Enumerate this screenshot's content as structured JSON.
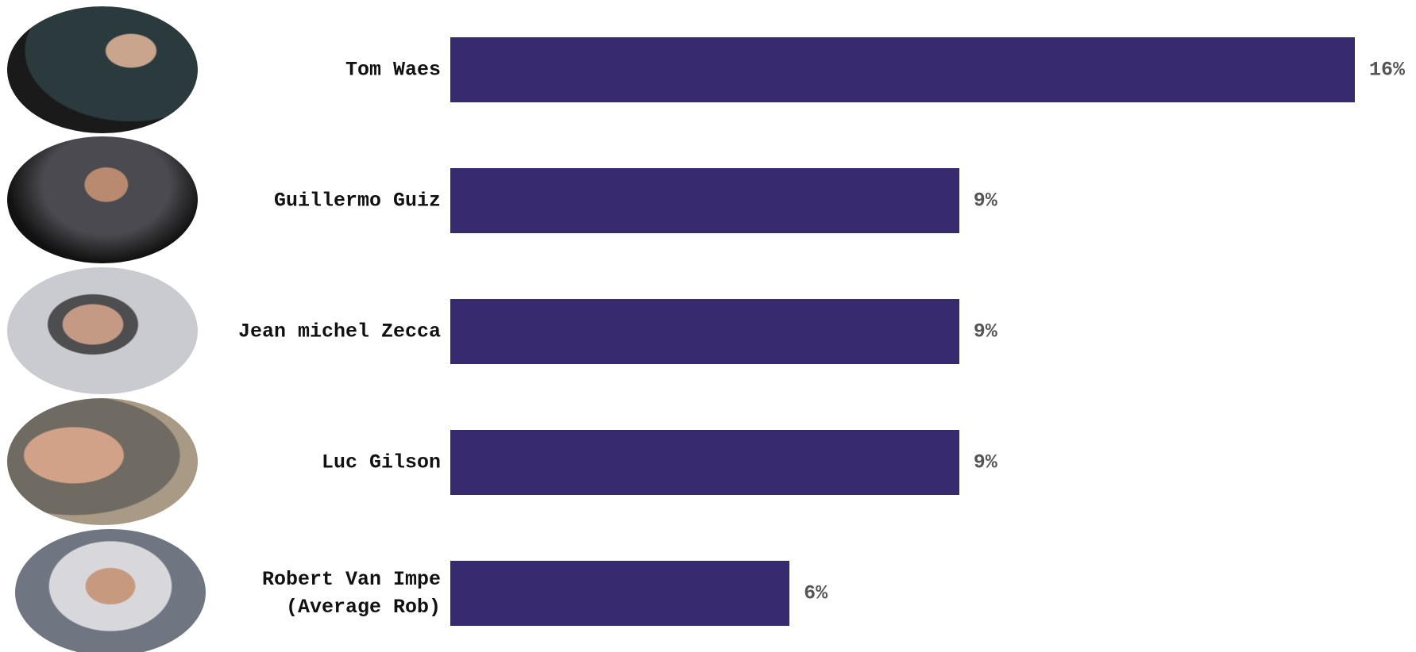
{
  "chart_data": {
    "type": "bar",
    "orientation": "horizontal",
    "categories": [
      "Tom Waes",
      "Guillermo Guiz",
      "Jean michel Zecca",
      "Luc Gilson",
      "Robert Van Impe\n(Average Rob)"
    ],
    "values": [
      16,
      9,
      9,
      9,
      6
    ],
    "value_labels": [
      "16%",
      "9%",
      "9%",
      "9%",
      "6%"
    ],
    "color": "#372a6e",
    "xlim": [
      0,
      16
    ]
  }
}
